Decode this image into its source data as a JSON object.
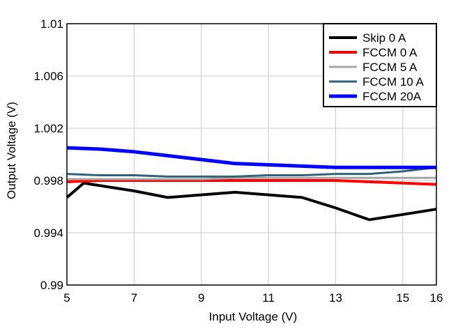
{
  "chart_data": {
    "type": "line",
    "xlabel": "Input Voltage (V)",
    "ylabel": "Output Voltage (V)",
    "xlim": [
      5,
      16
    ],
    "ylim": [
      0.99,
      1.01
    ],
    "x_ticks": [
      5,
      7,
      9,
      11,
      13,
      15,
      16
    ],
    "y_ticks": [
      0.99,
      0.994,
      0.998,
      1.002,
      1.006,
      1.01
    ],
    "x_tick_labels": [
      "5",
      "7",
      "9",
      "11",
      "13",
      "15",
      "16"
    ],
    "y_tick_labels": [
      "0.99",
      "0.994",
      "0.998",
      "1.002",
      "1.006",
      "1.01"
    ],
    "grid": true,
    "legend_position": "top-right",
    "series": [
      {
        "name": "Skip 0 A",
        "color": "#000000",
        "x": [
          5,
          5.5,
          6,
          7,
          8,
          9,
          10,
          11,
          12,
          13,
          14,
          15,
          16
        ],
        "y": [
          0.9967,
          0.9978,
          0.9976,
          0.9972,
          0.9967,
          0.9969,
          0.9971,
          0.9969,
          0.9967,
          0.9959,
          0.995,
          0.9954,
          0.9958
        ]
      },
      {
        "name": "FCCM 0 A",
        "color": "#ff0000",
        "x": [
          5,
          6,
          7,
          8,
          9,
          10,
          11,
          12,
          13,
          14,
          15,
          16
        ],
        "y": [
          0.9979,
          0.998,
          0.998,
          0.998,
          0.998,
          0.998,
          0.998,
          0.998,
          0.998,
          0.9979,
          0.9978,
          0.9977
        ]
      },
      {
        "name": "FCCM 5 A",
        "color": "#a6a6a6",
        "x": [
          5,
          6,
          7,
          8,
          9,
          10,
          11,
          12,
          13,
          14,
          15,
          16
        ],
        "y": [
          0.9981,
          0.9981,
          0.9981,
          0.9981,
          0.9981,
          0.9982,
          0.9982,
          0.9982,
          0.9982,
          0.9982,
          0.9982,
          0.9982
        ]
      },
      {
        "name": "FCCM 10 A",
        "color": "#2f6279",
        "x": [
          5,
          6,
          7,
          8,
          9,
          10,
          11,
          12,
          13,
          14,
          15,
          16
        ],
        "y": [
          0.9985,
          0.9984,
          0.9984,
          0.9983,
          0.9983,
          0.9983,
          0.9984,
          0.9984,
          0.9985,
          0.9985,
          0.9987,
          0.999
        ]
      },
      {
        "name": "FCCM 20A",
        "color": "#0000ff",
        "x": [
          5,
          6,
          7,
          8,
          9,
          10,
          11,
          12,
          13,
          14,
          15,
          16
        ],
        "y": [
          1.0005,
          1.0004,
          1.0002,
          0.9999,
          0.9996,
          0.9993,
          0.9992,
          0.9991,
          0.999,
          0.999,
          0.999,
          0.999
        ]
      }
    ]
  }
}
